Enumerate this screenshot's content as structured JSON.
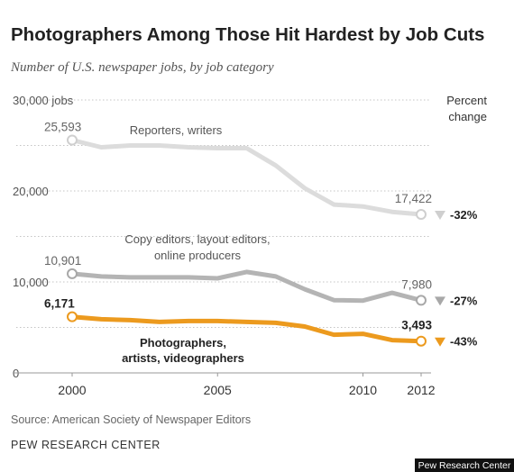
{
  "chart_data": {
    "type": "line",
    "title": "Photographers Among Those Hit Hardest by Job Cuts",
    "subtitle": "Number of U.S. newspaper jobs, by job category",
    "y_ticks": [
      "30,000 jobs",
      "20,000",
      "10,000",
      "0"
    ],
    "ylim": [
      0,
      30000
    ],
    "x_ticks": [
      "2000",
      "2005",
      "2010",
      "2012"
    ],
    "xlim": [
      2000,
      2012
    ],
    "right_header": [
      "Percent",
      "change"
    ],
    "grid": "dotted horizontal",
    "x": [
      2000,
      2001,
      2002,
      2003,
      2004,
      2005,
      2006,
      2007,
      2008,
      2009,
      2010,
      2011,
      2012
    ],
    "series": [
      {
        "name": "Reporters, writers",
        "label_lines": [
          "Reporters, writers"
        ],
        "color": "#dcdcdc",
        "marker_color": "#cfcfcf",
        "values": [
          25593,
          24800,
          25000,
          25000,
          24800,
          24700,
          24700,
          22800,
          20300,
          18500,
          18300,
          17700,
          17422
        ],
        "start_label": "25,593",
        "end_label": "17,422",
        "percent_change": "-32%"
      },
      {
        "name": "Copy editors, layout editors, online producers",
        "label_lines": [
          "Copy editors, layout editors,",
          "online producers"
        ],
        "color": "#b4b4b4",
        "marker_color": "#a8a8a8",
        "values": [
          10901,
          10600,
          10500,
          10500,
          10500,
          10400,
          11100,
          10600,
          9200,
          8000,
          7950,
          8800,
          7980
        ],
        "start_label": "10,901",
        "end_label": "7,980",
        "percent_change": "-27%"
      },
      {
        "name": "Photographers, artists, videographers",
        "label_lines": [
          "Photographers,",
          "artists, videographers"
        ],
        "color": "#ec9a1e",
        "marker_color": "#ec9a1e",
        "values": [
          6171,
          5900,
          5800,
          5600,
          5700,
          5700,
          5600,
          5500,
          5100,
          4200,
          4300,
          3600,
          3493
        ],
        "start_label": "6,171",
        "end_label": "3,493",
        "percent_change": "-43%"
      }
    ]
  },
  "source": "Source: American Society of Newspaper Editors",
  "organization": "PEW RESEARCH CENTER",
  "credit": "Pew Research Center"
}
